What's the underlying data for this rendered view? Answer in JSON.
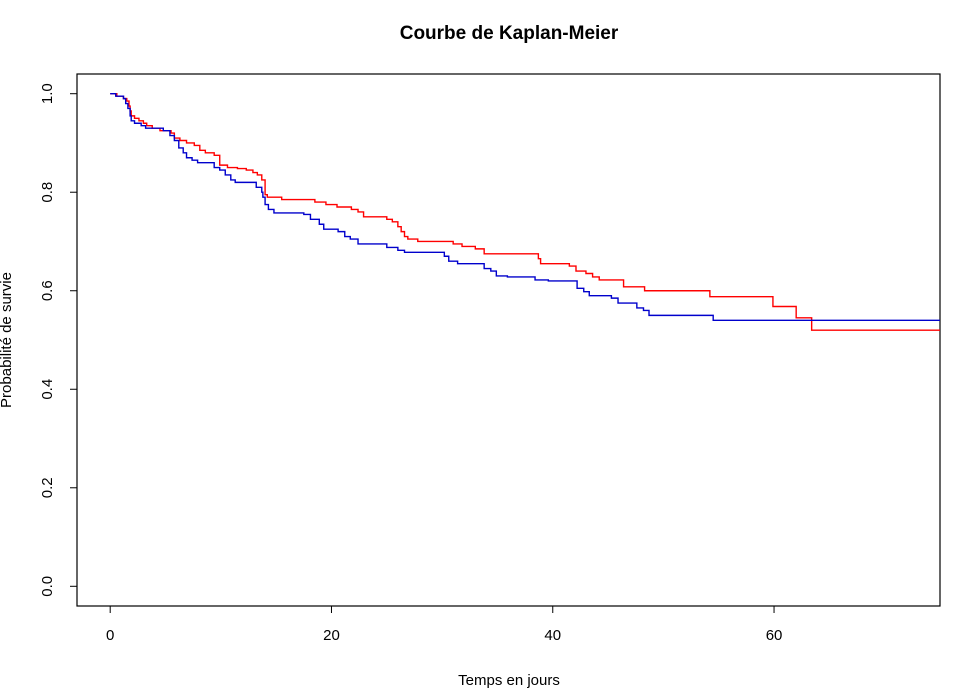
{
  "chart_data": {
    "type": "line",
    "step": true,
    "title": "Courbe de Kaplan-Meier",
    "xlabel": "Temps en jours",
    "ylabel": "Probabilité de survie",
    "xlim": [
      -3,
      75
    ],
    "ylim": [
      -0.04,
      1.04
    ],
    "x_ticks": [
      0,
      20,
      40,
      60
    ],
    "y_ticks": [
      0.0,
      0.2,
      0.4,
      0.6,
      0.8,
      1.0
    ],
    "x_tick_labels": [
      "0",
      "20",
      "40",
      "60"
    ],
    "y_tick_labels": [
      "0.0",
      "0.2",
      "0.4",
      "0.6",
      "0.8",
      "1.0"
    ],
    "grid": false,
    "legend": "none",
    "series": [
      {
        "color": "#ff0000",
        "points": [
          [
            0,
            1.0
          ],
          [
            0.5,
            1.0
          ],
          [
            0.6,
            0.995
          ],
          [
            1.2,
            0.99
          ],
          [
            1.5,
            0.985
          ],
          [
            1.7,
            0.975
          ],
          [
            1.8,
            0.965
          ],
          [
            1.9,
            0.955
          ],
          [
            2.2,
            0.95
          ],
          [
            2.6,
            0.945
          ],
          [
            3.0,
            0.94
          ],
          [
            3.3,
            0.935
          ],
          [
            3.8,
            0.93
          ],
          [
            4.5,
            0.925
          ],
          [
            5.5,
            0.92
          ],
          [
            5.8,
            0.91
          ],
          [
            6.3,
            0.905
          ],
          [
            6.9,
            0.9
          ],
          [
            7.6,
            0.895
          ],
          [
            8.1,
            0.885
          ],
          [
            8.6,
            0.88
          ],
          [
            9.4,
            0.875
          ],
          [
            9.9,
            0.855
          ],
          [
            10.6,
            0.85
          ],
          [
            11.5,
            0.848
          ],
          [
            12.3,
            0.845
          ],
          [
            12.9,
            0.84
          ],
          [
            13.3,
            0.835
          ],
          [
            13.7,
            0.825
          ],
          [
            14.0,
            0.795
          ],
          [
            14.2,
            0.79
          ],
          [
            15.5,
            0.785
          ],
          [
            18.5,
            0.78
          ],
          [
            19.5,
            0.775
          ],
          [
            20.5,
            0.77
          ],
          [
            21.0,
            0.77
          ],
          [
            21.8,
            0.765
          ],
          [
            22.4,
            0.76
          ],
          [
            22.9,
            0.75
          ],
          [
            25.0,
            0.745
          ],
          [
            25.5,
            0.74
          ],
          [
            26.0,
            0.73
          ],
          [
            26.3,
            0.72
          ],
          [
            26.6,
            0.71
          ],
          [
            26.9,
            0.705
          ],
          [
            27.8,
            0.7
          ],
          [
            31.0,
            0.695
          ],
          [
            31.8,
            0.69
          ],
          [
            33.0,
            0.685
          ],
          [
            33.8,
            0.675
          ],
          [
            38.7,
            0.665
          ],
          [
            38.9,
            0.655
          ],
          [
            41.5,
            0.65
          ],
          [
            42.1,
            0.64
          ],
          [
            43.0,
            0.635
          ],
          [
            43.6,
            0.628
          ],
          [
            44.2,
            0.622
          ],
          [
            46.4,
            0.608
          ],
          [
            48.3,
            0.6
          ],
          [
            54.2,
            0.588
          ],
          [
            59.9,
            0.568
          ],
          [
            62.0,
            0.545
          ],
          [
            63.4,
            0.52
          ],
          [
            75.0,
            0.52
          ]
        ]
      },
      {
        "color": "#0000cc",
        "points": [
          [
            0,
            1.0
          ],
          [
            0.5,
            0.995
          ],
          [
            1.2,
            0.99
          ],
          [
            1.4,
            0.98
          ],
          [
            1.6,
            0.97
          ],
          [
            1.8,
            0.955
          ],
          [
            1.9,
            0.945
          ],
          [
            2.2,
            0.94
          ],
          [
            2.8,
            0.935
          ],
          [
            3.2,
            0.93
          ],
          [
            4.8,
            0.925
          ],
          [
            5.4,
            0.915
          ],
          [
            5.8,
            0.905
          ],
          [
            6.2,
            0.89
          ],
          [
            6.6,
            0.88
          ],
          [
            6.9,
            0.87
          ],
          [
            7.4,
            0.865
          ],
          [
            7.9,
            0.86
          ],
          [
            9.4,
            0.85
          ],
          [
            9.9,
            0.845
          ],
          [
            10.4,
            0.835
          ],
          [
            10.9,
            0.825
          ],
          [
            11.3,
            0.82
          ],
          [
            13.2,
            0.81
          ],
          [
            13.7,
            0.8
          ],
          [
            13.8,
            0.79
          ],
          [
            14.0,
            0.775
          ],
          [
            14.3,
            0.765
          ],
          [
            14.8,
            0.758
          ],
          [
            17.5,
            0.755
          ],
          [
            18.1,
            0.745
          ],
          [
            18.9,
            0.735
          ],
          [
            19.3,
            0.725
          ],
          [
            20.6,
            0.72
          ],
          [
            21.2,
            0.71
          ],
          [
            21.7,
            0.705
          ],
          [
            22.4,
            0.695
          ],
          [
            25.0,
            0.688
          ],
          [
            26.0,
            0.682
          ],
          [
            26.6,
            0.678
          ],
          [
            30.2,
            0.67
          ],
          [
            30.6,
            0.66
          ],
          [
            31.4,
            0.655
          ],
          [
            33.8,
            0.645
          ],
          [
            34.4,
            0.64
          ],
          [
            34.9,
            0.63
          ],
          [
            35.9,
            0.628
          ],
          [
            38.4,
            0.622
          ],
          [
            39.6,
            0.62
          ],
          [
            41.9,
            0.62
          ],
          [
            42.2,
            0.605
          ],
          [
            42.8,
            0.598
          ],
          [
            43.3,
            0.59
          ],
          [
            45.3,
            0.585
          ],
          [
            45.9,
            0.575
          ],
          [
            47.6,
            0.565
          ],
          [
            48.2,
            0.56
          ],
          [
            48.7,
            0.55
          ],
          [
            49.2,
            0.55
          ],
          [
            54.5,
            0.54
          ],
          [
            75.0,
            0.54
          ]
        ]
      }
    ]
  }
}
